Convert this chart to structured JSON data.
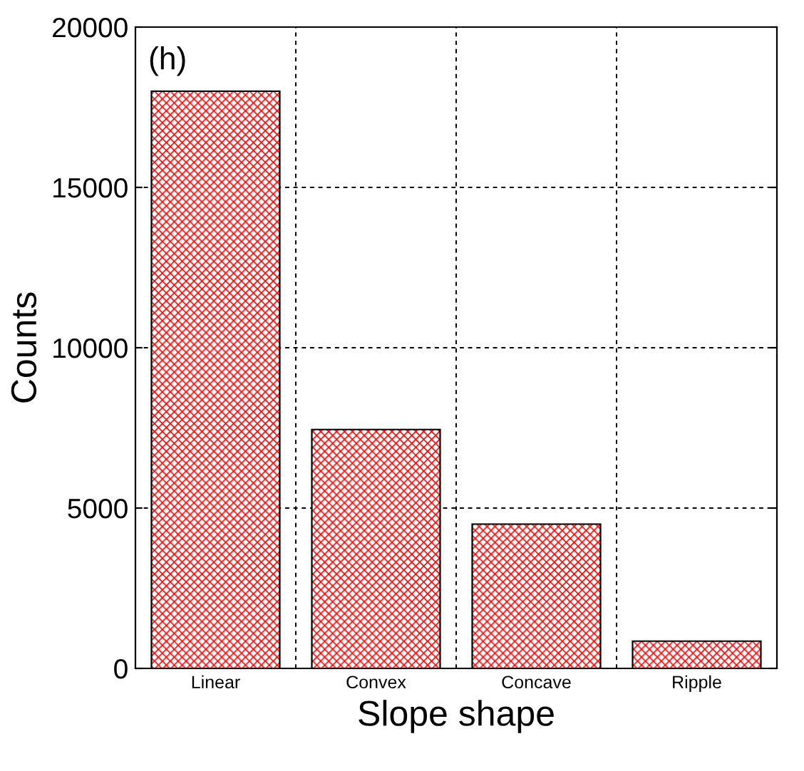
{
  "chart_data": {
    "type": "bar",
    "xlabel": "Slope shape",
    "ylabel": "Counts",
    "categories": [
      "Linear",
      "Convex",
      "Concave",
      "Ripple"
    ],
    "values": [
      18000,
      7450,
      4500,
      850
    ],
    "color": "#ff0000",
    "ylim": [
      0,
      20000
    ],
    "yticks": [
      0,
      5000,
      10000,
      15000,
      20000
    ],
    "grid": true,
    "annotations": [
      "(h)"
    ]
  }
}
